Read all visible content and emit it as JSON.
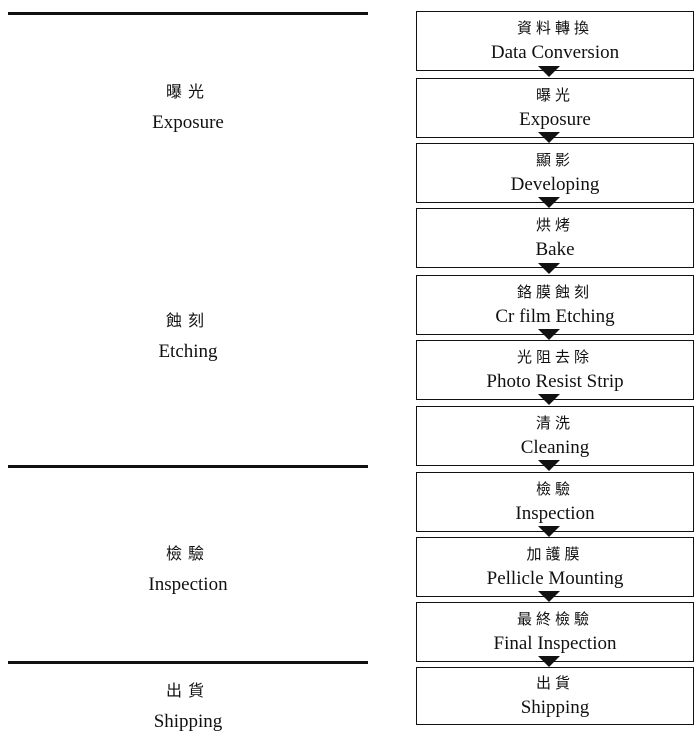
{
  "stages": [
    {
      "zh": "曝光",
      "en": "Exposure"
    },
    {
      "zh": "蝕刻",
      "en": "Etching"
    },
    {
      "zh": "檢驗",
      "en": "Inspection"
    },
    {
      "zh": "出貨",
      "en": "Shipping"
    }
  ],
  "steps": [
    {
      "zh": "資料轉換",
      "en": "Data Conversion"
    },
    {
      "zh": "曝光",
      "en": "Exposure"
    },
    {
      "zh": "顯影",
      "en": "Developing"
    },
    {
      "zh": "烘烤",
      "en": "Bake"
    },
    {
      "zh": "鉻膜蝕刻",
      "en": "Cr film Etching"
    },
    {
      "zh": "光阻去除",
      "en": "Photo Resist Strip"
    },
    {
      "zh": "清洗",
      "en": "Cleaning"
    },
    {
      "zh": "檢驗",
      "en": "Inspection"
    },
    {
      "zh": "加護膜",
      "en": "Pellicle Mounting"
    },
    {
      "zh": "最終檢驗",
      "en": "Final Inspection"
    },
    {
      "zh": "出貨",
      "en": "Shipping"
    }
  ]
}
